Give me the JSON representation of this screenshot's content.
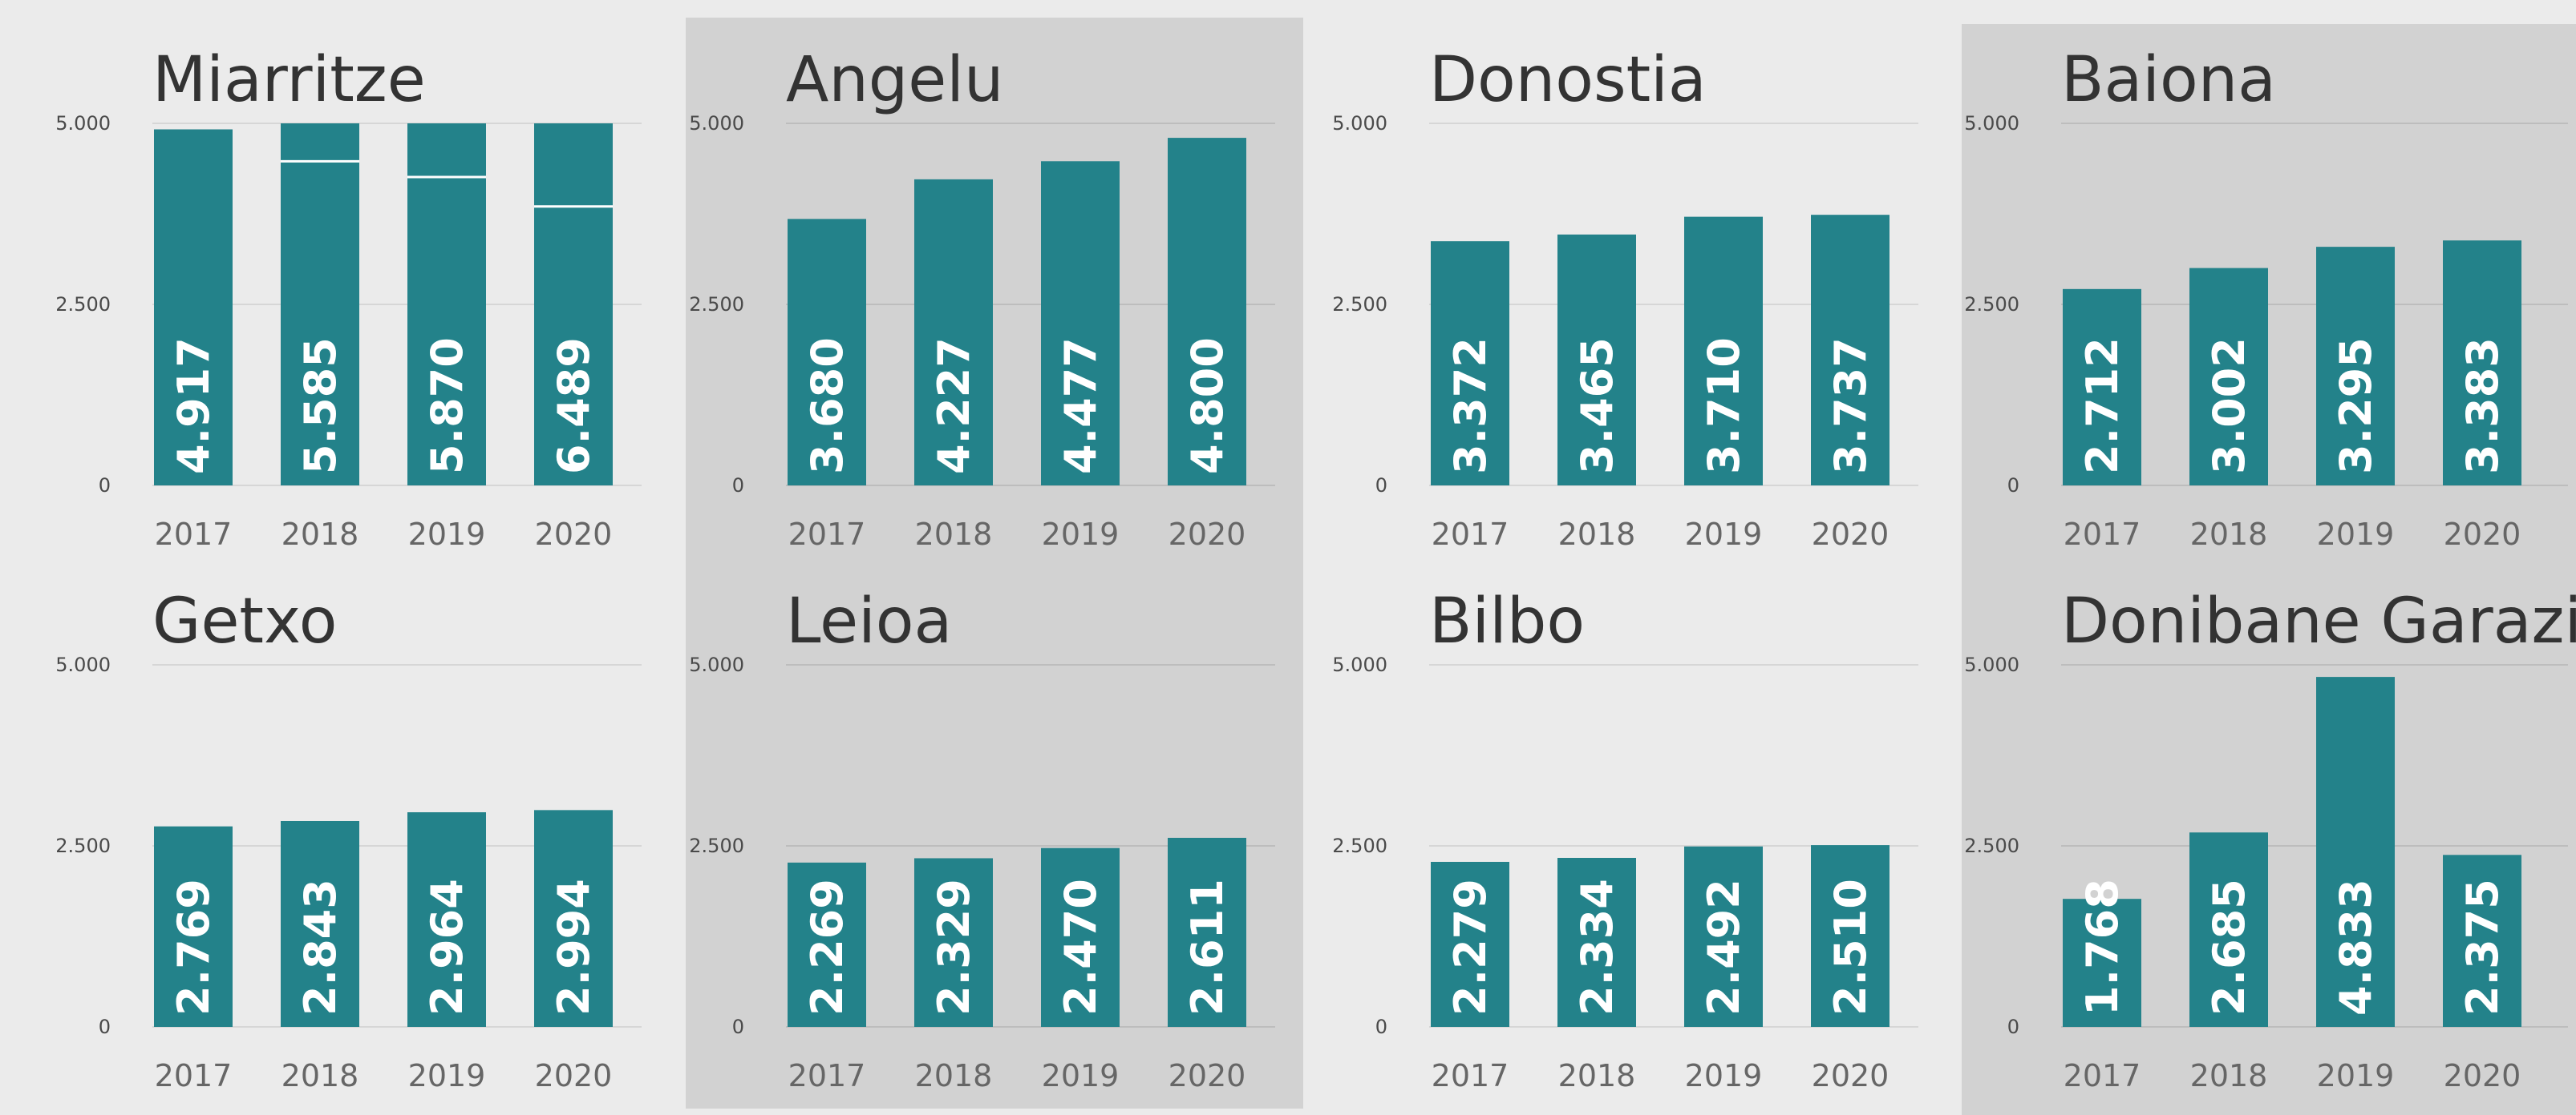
{
  "colors": {
    "bar": "#23828a",
    "background": "#ebebeb",
    "panel_shade": "#d2d2d2",
    "label": "#ffffff"
  },
  "chart_data": [
    {
      "type": "bar",
      "title": "Miarritze",
      "categories": [
        "2017",
        "2018",
        "2019",
        "2020"
      ],
      "values": [
        4917,
        5585,
        5870,
        6489
      ],
      "value_labels": [
        "4.917",
        "5.585",
        "5.870",
        "6.489"
      ],
      "ylim": [
        0,
        5000
      ],
      "yticks": [
        0,
        2500,
        5000
      ],
      "ytick_labels": [
        "0",
        "2.500",
        "5.000"
      ],
      "grid": true
    },
    {
      "type": "bar",
      "title": "Angelu",
      "categories": [
        "2017",
        "2018",
        "2019",
        "2020"
      ],
      "values": [
        3680,
        4227,
        4477,
        4800
      ],
      "value_labels": [
        "3.680",
        "4.227",
        "4.477",
        "4.800"
      ],
      "ylim": [
        0,
        5000
      ],
      "yticks": [
        0,
        2500,
        5000
      ],
      "ytick_labels": [
        "0",
        "2.500",
        "5.000"
      ],
      "grid": true
    },
    {
      "type": "bar",
      "title": "Donostia",
      "categories": [
        "2017",
        "2018",
        "2019",
        "2020"
      ],
      "values": [
        3372,
        3465,
        3710,
        3737
      ],
      "value_labels": [
        "3.372",
        "3.465",
        "3.710",
        "3.737"
      ],
      "ylim": [
        0,
        5000
      ],
      "yticks": [
        0,
        2500,
        5000
      ],
      "ytick_labels": [
        "0",
        "2.500",
        "5.000"
      ],
      "grid": true
    },
    {
      "type": "bar",
      "title": "Baiona",
      "categories": [
        "2017",
        "2018",
        "2019",
        "2020"
      ],
      "values": [
        2712,
        3002,
        3295,
        3383
      ],
      "value_labels": [
        "2.712",
        "3.002",
        "3.295",
        "3.383"
      ],
      "ylim": [
        0,
        5000
      ],
      "yticks": [
        0,
        2500,
        5000
      ],
      "ytick_labels": [
        "0",
        "2.500",
        "5.000"
      ],
      "grid": true
    },
    {
      "type": "bar",
      "title": "Getxo",
      "categories": [
        "2017",
        "2018",
        "2019",
        "2020"
      ],
      "values": [
        2769,
        2843,
        2964,
        2994
      ],
      "value_labels": [
        "2.769",
        "2.843",
        "2.964",
        "2.994"
      ],
      "ylim": [
        0,
        5000
      ],
      "yticks": [
        0,
        2500,
        5000
      ],
      "ytick_labels": [
        "0",
        "2.500",
        "5.000"
      ],
      "grid": true
    },
    {
      "type": "bar",
      "title": "Leioa",
      "categories": [
        "2017",
        "2018",
        "2019",
        "2020"
      ],
      "values": [
        2269,
        2329,
        2470,
        2611
      ],
      "value_labels": [
        "2.269",
        "2.329",
        "2.470",
        "2.611"
      ],
      "ylim": [
        0,
        5000
      ],
      "yticks": [
        0,
        2500,
        5000
      ],
      "ytick_labels": [
        "0",
        "2.500",
        "5.000"
      ],
      "grid": true
    },
    {
      "type": "bar",
      "title": "Bilbo",
      "categories": [
        "2017",
        "2018",
        "2019",
        "2020"
      ],
      "values": [
        2279,
        2334,
        2492,
        2510
      ],
      "value_labels": [
        "2.279",
        "2.334",
        "2.492",
        "2.510"
      ],
      "ylim": [
        0,
        5000
      ],
      "yticks": [
        0,
        2500,
        5000
      ],
      "ytick_labels": [
        "0",
        "2.500",
        "5.000"
      ],
      "grid": true
    },
    {
      "type": "bar",
      "title": "Donibane Garazi",
      "categories": [
        "2017",
        "2018",
        "2019",
        "2020"
      ],
      "values": [
        1768,
        2685,
        4833,
        2375
      ],
      "value_labels": [
        "1.768",
        "2.685",
        "4.833",
        "2.375"
      ],
      "ylim": [
        0,
        5000
      ],
      "yticks": [
        0,
        2500,
        5000
      ],
      "ytick_labels": [
        "0",
        "2.500",
        "5.000"
      ],
      "grid": true
    }
  ]
}
